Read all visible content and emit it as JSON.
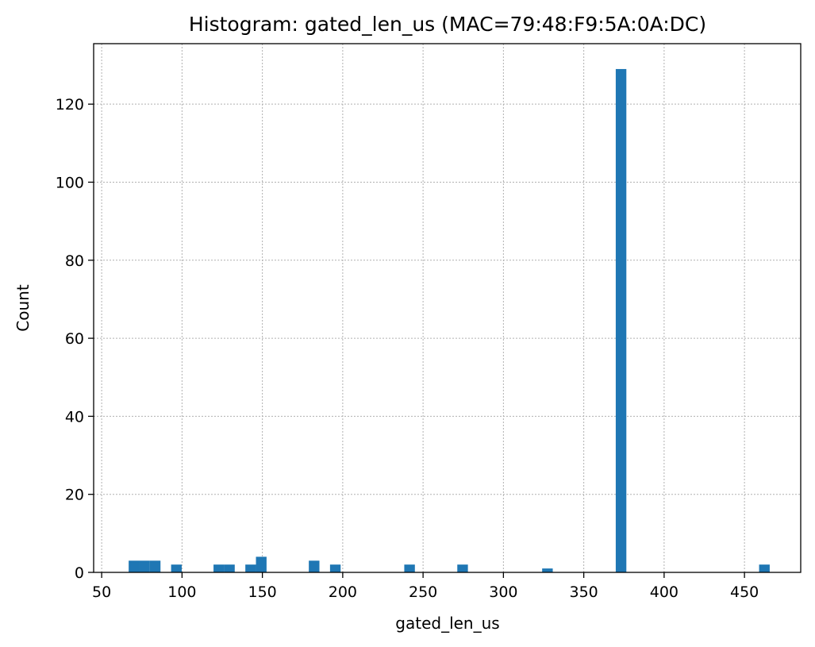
{
  "chart_data": {
    "type": "bar",
    "title": "Histogram: gated_len_us (MAC=79:48:F9:5A:0A:DC)",
    "xlabel": "gated_len_us",
    "ylabel": "Count",
    "xlim": [
      45,
      485
    ],
    "ylim": [
      0,
      135.5
    ],
    "xticks": [
      50,
      100,
      150,
      200,
      250,
      300,
      350,
      400,
      450
    ],
    "yticks": [
      0,
      20,
      40,
      60,
      80,
      100,
      120
    ],
    "grid": true,
    "color": "#1f77b4",
    "bin_width": 6.6,
    "bins": [
      {
        "x0": 66.8,
        "count": 3
      },
      {
        "x0": 73.4,
        "count": 3
      },
      {
        "x0": 80.0,
        "count": 3
      },
      {
        "x0": 93.2,
        "count": 2
      },
      {
        "x0": 119.6,
        "count": 2
      },
      {
        "x0": 126.2,
        "count": 2
      },
      {
        "x0": 139.4,
        "count": 2
      },
      {
        "x0": 146.0,
        "count": 4
      },
      {
        "x0": 178.9,
        "count": 3
      },
      {
        "x0": 192.1,
        "count": 2
      },
      {
        "x0": 238.3,
        "count": 2
      },
      {
        "x0": 271.3,
        "count": 2
      },
      {
        "x0": 324.1,
        "count": 1
      },
      {
        "x0": 369.9,
        "count": 129
      },
      {
        "x0": 459.1,
        "count": 2
      }
    ]
  }
}
